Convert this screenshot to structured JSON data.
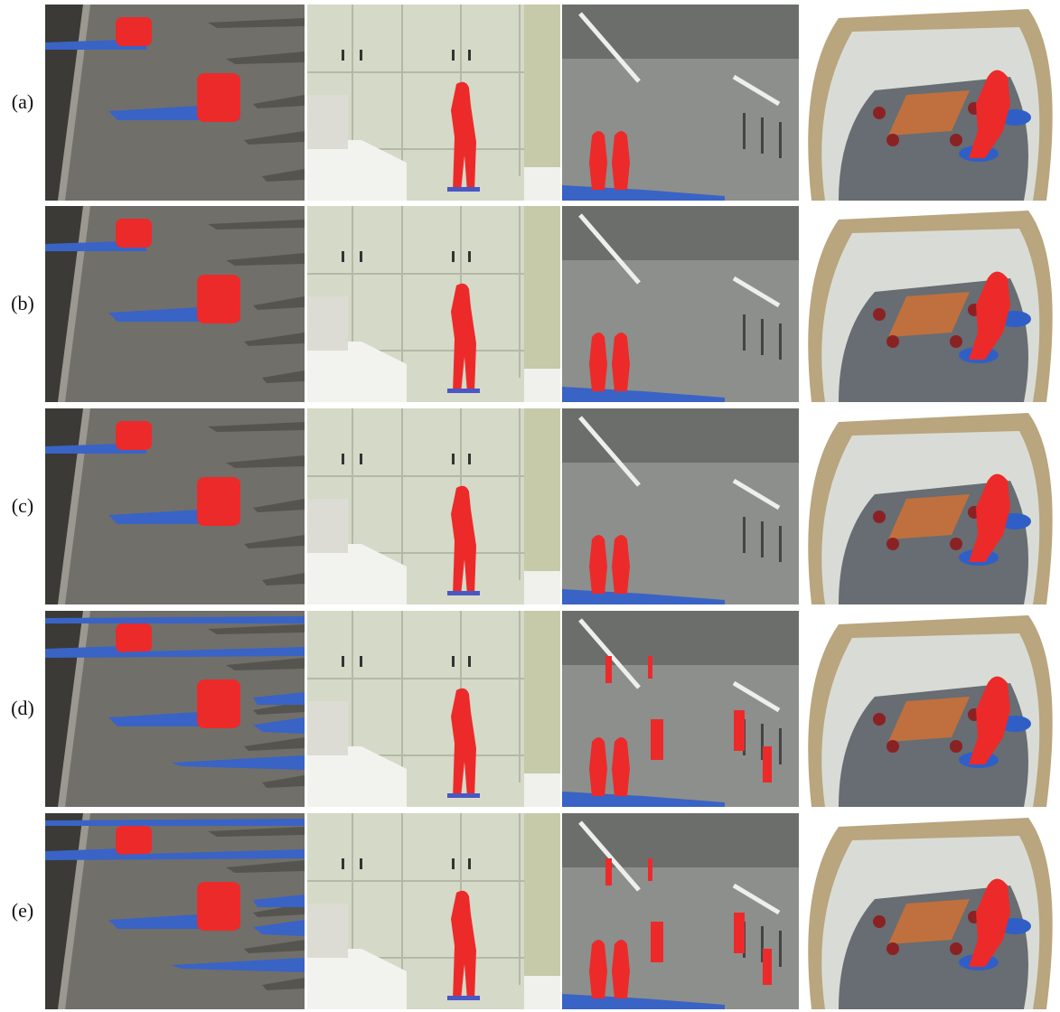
{
  "figure": {
    "rows": [
      {
        "label": "(a)"
      },
      {
        "label": "(b)"
      },
      {
        "label": "(c)"
      },
      {
        "label": "(d)"
      },
      {
        "label": "(e)"
      }
    ]
  }
}
